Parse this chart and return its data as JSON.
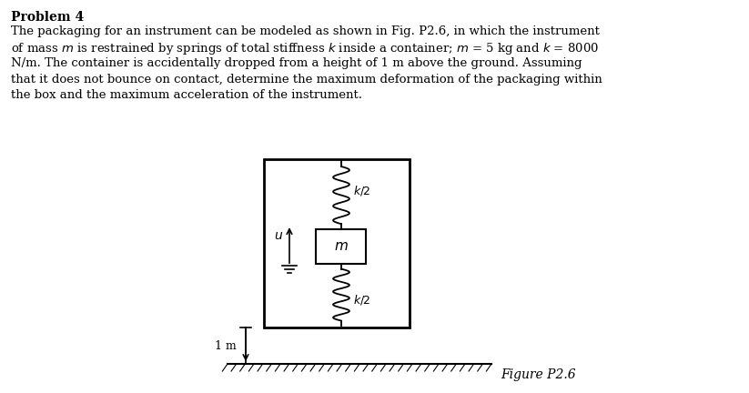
{
  "title": "Problem 4",
  "line1": "The packaging for an instrument can be modeled as shown in Fig. P2.6, in which the instrument",
  "line2": "of mass $m$ is restrained by springs of total stiffness $k$ inside a container; $m$ = 5 kg and $k$ = 8000",
  "line3": "N/m. The container is accidentally dropped from a height of 1 m above the ground. Assuming",
  "line4": "that it does not bounce on contact, determine the maximum deformation of the packaging within",
  "line5": "the box and the maximum acceleration of the instrument.",
  "figure_label": "Figure P2.6",
  "bg_color": "#ffffff",
  "text_color": "#000000",
  "font_size_title": 10,
  "font_size_body": 9.5,
  "font_size_diagram": 9
}
